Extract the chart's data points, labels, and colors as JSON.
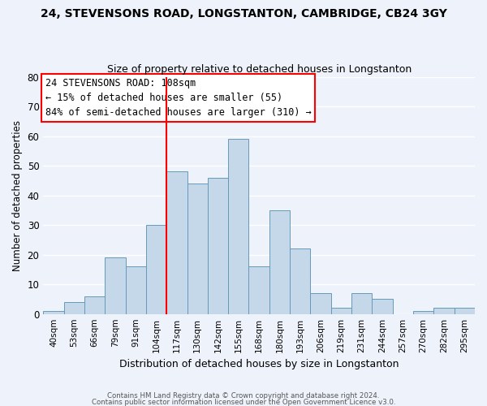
{
  "title1": "24, STEVENSONS ROAD, LONGSTANTON, CAMBRIDGE, CB24 3GY",
  "title2": "Size of property relative to detached houses in Longstanton",
  "xlabel": "Distribution of detached houses by size in Longstanton",
  "ylabel": "Number of detached properties",
  "footer1": "Contains HM Land Registry data © Crown copyright and database right 2024.",
  "footer2": "Contains public sector information licensed under the Open Government Licence v3.0.",
  "annotation_line1": "24 STEVENSONS ROAD: 108sqm",
  "annotation_line2": "← 15% of detached houses are smaller (55)",
  "annotation_line3": "84% of semi-detached houses are larger (310) →",
  "bar_labels": [
    "40sqm",
    "53sqm",
    "66sqm",
    "79sqm",
    "91sqm",
    "104sqm",
    "117sqm",
    "130sqm",
    "142sqm",
    "155sqm",
    "168sqm",
    "180sqm",
    "193sqm",
    "206sqm",
    "219sqm",
    "231sqm",
    "244sqm",
    "257sqm",
    "270sqm",
    "282sqm",
    "295sqm"
  ],
  "bar_values": [
    1,
    4,
    6,
    19,
    16,
    30,
    48,
    44,
    46,
    59,
    16,
    35,
    22,
    7,
    2,
    7,
    5,
    0,
    1,
    2,
    2
  ],
  "bar_color": "#c5d8ea",
  "bar_edge_color": "#6699bb",
  "vline_x": 6.0,
  "vline_color": "red",
  "ylim": [
    0,
    80
  ],
  "yticks": [
    0,
    10,
    20,
    30,
    40,
    50,
    60,
    70,
    80
  ],
  "annotation_box_color": "white",
  "annotation_box_edge": "red",
  "bg_color": "#eef2fa",
  "grid_color": "white"
}
